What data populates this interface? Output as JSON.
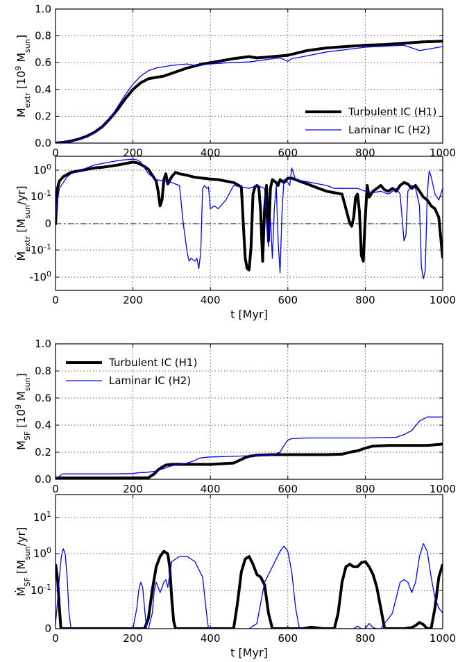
{
  "chart_data": [
    {
      "type": "line",
      "xlabel": "",
      "ylabel": "M_extr [10^9 M_sun]",
      "ylabel_parts": {
        "main": "M",
        "sub": "extr",
        "unit_prefix": " [10",
        "sup": "9",
        "unit_main": " M",
        "unit_sub": "sun",
        "close": "]"
      },
      "xlim": [
        0,
        1000
      ],
      "ylim": [
        0,
        1.0
      ],
      "yscale": "linear",
      "xticks": [
        "0",
        "200",
        "400",
        "600",
        "800",
        "1000"
      ],
      "yticks": [
        "0.0",
        "0.2",
        "0.4",
        "0.6",
        "0.8",
        "1.0"
      ],
      "grid": true,
      "legend": {
        "position": "bottom-right",
        "entries": [
          "Turbulent IC (H1)",
          "Laminar IC (H2)"
        ]
      },
      "series": [
        {
          "name": "Turbulent IC (H1)",
          "color": "#000000",
          "x": [
            0,
            20,
            40,
            60,
            80,
            100,
            120,
            140,
            160,
            180,
            200,
            220,
            240,
            260,
            280,
            300,
            340,
            380,
            420,
            460,
            500,
            520,
            540,
            560,
            600,
            650,
            700,
            750,
            800,
            850,
            900,
            950,
            1000
          ],
          "y": [
            0,
            0.005,
            0.015,
            0.03,
            0.05,
            0.08,
            0.12,
            0.18,
            0.25,
            0.33,
            0.4,
            0.45,
            0.48,
            0.49,
            0.5,
            0.52,
            0.56,
            0.59,
            0.61,
            0.63,
            0.645,
            0.635,
            0.64,
            0.645,
            0.655,
            0.69,
            0.71,
            0.72,
            0.73,
            0.735,
            0.745,
            0.755,
            0.76
          ]
        },
        {
          "name": "Laminar IC (H2)",
          "color": "#0000ff",
          "x": [
            0,
            20,
            40,
            60,
            80,
            100,
            120,
            140,
            160,
            180,
            200,
            220,
            240,
            260,
            300,
            340,
            360,
            400,
            450,
            500,
            550,
            580,
            600,
            610,
            630,
            700,
            800,
            900,
            940,
            960,
            1000
          ],
          "y": [
            0,
            0.004,
            0.012,
            0.025,
            0.045,
            0.075,
            0.12,
            0.18,
            0.27,
            0.36,
            0.44,
            0.5,
            0.54,
            0.56,
            0.58,
            0.59,
            0.58,
            0.59,
            0.6,
            0.605,
            0.625,
            0.635,
            0.61,
            0.63,
            0.64,
            0.68,
            0.715,
            0.73,
            0.69,
            0.7,
            0.72
          ]
        }
      ]
    },
    {
      "type": "line",
      "xlabel": "t [Myr]",
      "ylabel": "Ṁ_extr [M_sun/yr]",
      "ylabel_parts": {
        "main": "Ṁ",
        "sub": "extr",
        "unit_prefix": " [M",
        "unit_sub": "sun",
        "close": "/yr]"
      },
      "xlim": [
        0,
        1000
      ],
      "ylim": [
        -2.3,
        2.3
      ],
      "yscale": "symlog",
      "xticks": [
        "0",
        "200",
        "400",
        "600",
        "800",
        "1000"
      ],
      "yticks": [
        {
          "base": "10",
          "exp": "0"
        },
        {
          "base": "10",
          "exp": "-1"
        },
        {
          "base": "0",
          "exp": ""
        },
        {
          "base": "-10",
          "exp": "-1"
        },
        {
          "base": "-10",
          "exp": "0"
        }
      ],
      "grid": true,
      "series": [
        {
          "name": "Turbulent IC (H1)",
          "color": "#000000",
          "x": [
            0,
            5,
            10,
            20,
            40,
            60,
            80,
            100,
            120,
            140,
            160,
            180,
            200,
            210,
            220,
            230,
            240,
            250,
            260,
            265,
            270,
            275,
            280,
            285,
            290,
            300,
            310,
            320,
            340,
            360,
            380,
            400,
            420,
            440,
            460,
            480,
            485,
            490,
            495,
            500,
            505,
            510,
            515,
            520,
            525,
            530,
            535,
            540,
            545,
            550,
            555,
            560,
            565,
            570,
            575,
            580,
            590,
            600,
            610,
            620,
            640,
            660,
            680,
            700,
            720,
            740,
            750,
            760,
            765,
            770,
            775,
            780,
            785,
            790,
            795,
            800,
            805,
            810,
            820,
            830,
            840,
            850,
            860,
            870,
            880,
            890,
            900,
            910,
            920,
            930,
            940,
            950,
            960,
            970,
            980,
            990,
            1000
          ],
          "y": [
            -0.05,
            1.2,
            1.45,
            1.6,
            1.75,
            1.8,
            1.85,
            1.9,
            1.92,
            1.96,
            2.0,
            2.05,
            2.1,
            2.08,
            2.02,
            1.95,
            1.85,
            1.65,
            1.45,
            1.1,
            0.6,
            0.8,
            1.5,
            1.7,
            1.35,
            1.6,
            1.75,
            1.7,
            1.65,
            1.58,
            1.55,
            1.52,
            1.5,
            1.45,
            1.4,
            1.25,
            0.0,
            -1.2,
            -1.55,
            -1.6,
            -0.8,
            1.0,
            1.25,
            1.3,
            1.25,
            0.4,
            -1.3,
            0.5,
            1.3,
            -0.6,
            1.2,
            1.5,
            1.45,
            1.4,
            1.3,
            1.5,
            1.4,
            1.55,
            1.55,
            1.5,
            1.4,
            1.3,
            1.2,
            1.1,
            1.05,
            1.0,
            0.5,
            0.0,
            -0.1,
            0.2,
            0.9,
            1.0,
            0.4,
            -1.1,
            -1.3,
            0.2,
            1.3,
            0.9,
            1.1,
            1.2,
            1.3,
            1.15,
            1.1,
            1.2,
            1.1,
            1.3,
            1.4,
            1.35,
            1.2,
            1.3,
            1.1,
            0.9,
            0.8,
            0.6,
            0.5,
            0.2,
            -1.2
          ]
        },
        {
          "name": "Laminar IC (H2)",
          "color": "#0000ff",
          "x": [
            0,
            5,
            10,
            20,
            30,
            40,
            60,
            80,
            100,
            120,
            140,
            160,
            180,
            200,
            210,
            220,
            230,
            240,
            250,
            260,
            280,
            300,
            320,
            330,
            340,
            345,
            350,
            355,
            360,
            365,
            370,
            375,
            380,
            385,
            390,
            395,
            400,
            410,
            420,
            440,
            460,
            480,
            500,
            520,
            540,
            545,
            550,
            555,
            560,
            565,
            570,
            575,
            580,
            585,
            590,
            600,
            605,
            610,
            620,
            640,
            660,
            680,
            700,
            720,
            740,
            760,
            780,
            800,
            820,
            840,
            860,
            880,
            890,
            895,
            900,
            905,
            910,
            920,
            930,
            940,
            945,
            950,
            955,
            960,
            965,
            970,
            980,
            990,
            1000
          ],
          "y": [
            0.2,
            0.8,
            1.2,
            1.4,
            1.6,
            1.7,
            1.8,
            1.9,
            2.0,
            2.05,
            2.1,
            2.15,
            2.18,
            2.2,
            2.18,
            2.1,
            1.9,
            1.7,
            1.6,
            1.5,
            1.45,
            1.4,
            1.3,
            0.0,
            -1.0,
            -1.3,
            -1.2,
            -1.25,
            -1.3,
            -1.2,
            -1.55,
            -1.0,
            1.2,
            1.3,
            1.2,
            1.25,
            0.5,
            0.6,
            0.5,
            0.8,
            1.3,
            1.25,
            1.2,
            1.3,
            1.2,
            0.0,
            -0.8,
            0.2,
            -1.2,
            0.5,
            1.3,
            -0.6,
            -1.7,
            0.4,
            1.5,
            1.4,
            1.3,
            1.9,
            1.5,
            1.45,
            1.4,
            1.35,
            1.3,
            1.2,
            1.2,
            1.2,
            1.2,
            1.1,
            1.05,
            1.1,
            1.0,
            1.2,
            1.0,
            0.2,
            -0.6,
            -0.4,
            1.1,
            1.3,
            1.2,
            0.6,
            -1.5,
            -1.9,
            -1.6,
            1.0,
            1.8,
            1.6,
            1.0,
            0.8,
            1.2
          ]
        }
      ]
    },
    {
      "type": "line",
      "xlabel": "",
      "ylabel": "M_SF [10^9 M_sun]",
      "ylabel_parts": {
        "main": "M",
        "sub": "SF",
        "unit_prefix": " [10",
        "sup": "9",
        "unit_main": " M",
        "unit_sub": "sun",
        "close": "]"
      },
      "xlim": [
        0,
        1000
      ],
      "ylim": [
        0,
        1.0
      ],
      "yscale": "linear",
      "xticks": [
        "0",
        "200",
        "400",
        "600",
        "800",
        "1000"
      ],
      "yticks": [
        "0.0",
        "0.2",
        "0.4",
        "0.6",
        "0.8",
        "1.0"
      ],
      "grid": true,
      "legend": {
        "position": "top-left",
        "entries": [
          "Turbulent IC (H1)",
          "Laminar IC (H2)"
        ]
      },
      "series": [
        {
          "name": "Turbulent IC (H1)",
          "color": "#000000",
          "x": [
            0,
            50,
            100,
            150,
            200,
            240,
            255,
            265,
            275,
            285,
            300,
            340,
            400,
            460,
            475,
            490,
            500,
            520,
            540,
            560,
            600,
            700,
            740,
            760,
            780,
            800,
            820,
            860,
            900,
            960,
            1000
          ],
          "y": [
            0.01,
            0.01,
            0.01,
            0.01,
            0.01,
            0.012,
            0.04,
            0.07,
            0.09,
            0.105,
            0.11,
            0.11,
            0.11,
            0.12,
            0.14,
            0.16,
            0.17,
            0.178,
            0.18,
            0.182,
            0.182,
            0.182,
            0.185,
            0.2,
            0.21,
            0.23,
            0.245,
            0.25,
            0.25,
            0.25,
            0.26
          ]
        },
        {
          "name": "Laminar IC (H2)",
          "color": "#0000ff",
          "x": [
            0,
            10,
            15,
            20,
            30,
            60,
            100,
            150,
            200,
            210,
            220,
            230,
            260,
            280,
            300,
            340,
            360,
            370,
            380,
            400,
            460,
            560,
            580,
            590,
            600,
            610,
            650,
            700,
            800,
            880,
            900,
            920,
            940,
            960,
            1000
          ],
          "y": [
            0.01,
            0.02,
            0.035,
            0.04,
            0.04,
            0.04,
            0.04,
            0.04,
            0.042,
            0.047,
            0.05,
            0.05,
            0.06,
            0.08,
            0.1,
            0.12,
            0.14,
            0.155,
            0.16,
            0.165,
            0.17,
            0.18,
            0.2,
            0.25,
            0.29,
            0.3,
            0.305,
            0.305,
            0.305,
            0.31,
            0.33,
            0.36,
            0.43,
            0.46,
            0.46
          ]
        }
      ]
    },
    {
      "type": "line",
      "xlabel": "t [Myr]",
      "ylabel": "Ṁ_SF [M_sun/yr]",
      "ylabel_parts": {
        "main": "Ṁ",
        "sub": "SF",
        "unit_prefix": " [M",
        "unit_sub": "sun",
        "close": "/yr]"
      },
      "xlim": [
        0,
        1000
      ],
      "ylim": [
        0,
        2.6
      ],
      "yscale": "symlog",
      "xticks": [
        "0",
        "200",
        "400",
        "600",
        "800",
        "1000"
      ],
      "yticks": [
        {
          "base": "10",
          "exp": "1"
        },
        {
          "base": "10",
          "exp": "0"
        },
        {
          "base": "10",
          "exp": "-1"
        },
        {
          "base": "0",
          "exp": ""
        }
      ],
      "grid": true,
      "series": [
        {
          "name": "Turbulent IC (H1)",
          "color": "#000000",
          "x": [
            0,
            3,
            6,
            10,
            14,
            20,
            50,
            100,
            150,
            200,
            230,
            240,
            250,
            260,
            270,
            280,
            290,
            295,
            300,
            305,
            310,
            320,
            440,
            460,
            470,
            480,
            490,
            500,
            510,
            520,
            530,
            540,
            550,
            560,
            640,
            660,
            690,
            720,
            730,
            740,
            750,
            760,
            770,
            780,
            790,
            800,
            810,
            820,
            830,
            840,
            850,
            860,
            900,
            920,
            930,
            940,
            950,
            960,
            970,
            980,
            990,
            1000
          ],
          "y": [
            1.25,
            1.1,
            0.9,
            0.4,
            0.0,
            0.0,
            0.0,
            0.0,
            0.0,
            0.0,
            0.0,
            0.2,
            0.75,
            1.2,
            1.4,
            1.5,
            1.45,
            1.2,
            0.6,
            0.15,
            0.0,
            0.0,
            0.0,
            0.0,
            0.5,
            1.1,
            1.35,
            1.4,
            1.25,
            1.05,
            1.0,
            0.85,
            0.3,
            0.0,
            0.0,
            0.03,
            0.0,
            0.0,
            0.3,
            0.9,
            1.2,
            1.25,
            1.2,
            1.2,
            1.28,
            1.3,
            1.2,
            1.05,
            0.8,
            0.4,
            0.0,
            0.0,
            0.0,
            0.02,
            0.06,
            0.12,
            0.08,
            0.0,
            0.0,
            0.4,
            1.0,
            1.25
          ]
        },
        {
          "name": "Laminar IC (H2)",
          "color": "#0000ff",
          "x": [
            0,
            5,
            10,
            15,
            20,
            25,
            30,
            35,
            40,
            100,
            180,
            200,
            210,
            215,
            220,
            225,
            230,
            235,
            240,
            250,
            255,
            260,
            270,
            280,
            285,
            290,
            300,
            320,
            340,
            360,
            380,
            390,
            395,
            400,
            500,
            520,
            530,
            540,
            560,
            580,
            590,
            600,
            610,
            620,
            630,
            700,
            770,
            780,
            790,
            800,
            810,
            820,
            830,
            840,
            850,
            870,
            880,
            890,
            900,
            910,
            920,
            930,
            940,
            950,
            960,
            970,
            980,
            990,
            1000
          ],
          "y": [
            0.1,
            0.5,
            1.0,
            1.4,
            1.55,
            1.45,
            1.0,
            0.3,
            0.0,
            0.0,
            0.0,
            0.0,
            0.4,
            0.75,
            0.9,
            0.8,
            0.4,
            0.0,
            0.0,
            0.3,
            0.75,
            0.9,
            0.7,
            0.9,
            0.95,
            0.8,
            1.3,
            1.4,
            1.4,
            1.3,
            1.0,
            0.3,
            0.0,
            0.0,
            0.0,
            0.1,
            0.5,
            0.9,
            1.2,
            1.5,
            1.6,
            1.5,
            1.1,
            0.4,
            0.0,
            0.0,
            0.0,
            0.05,
            0.0,
            0.0,
            0.1,
            0.02,
            0.0,
            0.0,
            0.1,
            0.3,
            0.6,
            0.9,
            0.95,
            0.9,
            0.7,
            0.9,
            1.4,
            1.65,
            1.5,
            1.0,
            0.6,
            0.4,
            0.3
          ]
        }
      ]
    }
  ]
}
